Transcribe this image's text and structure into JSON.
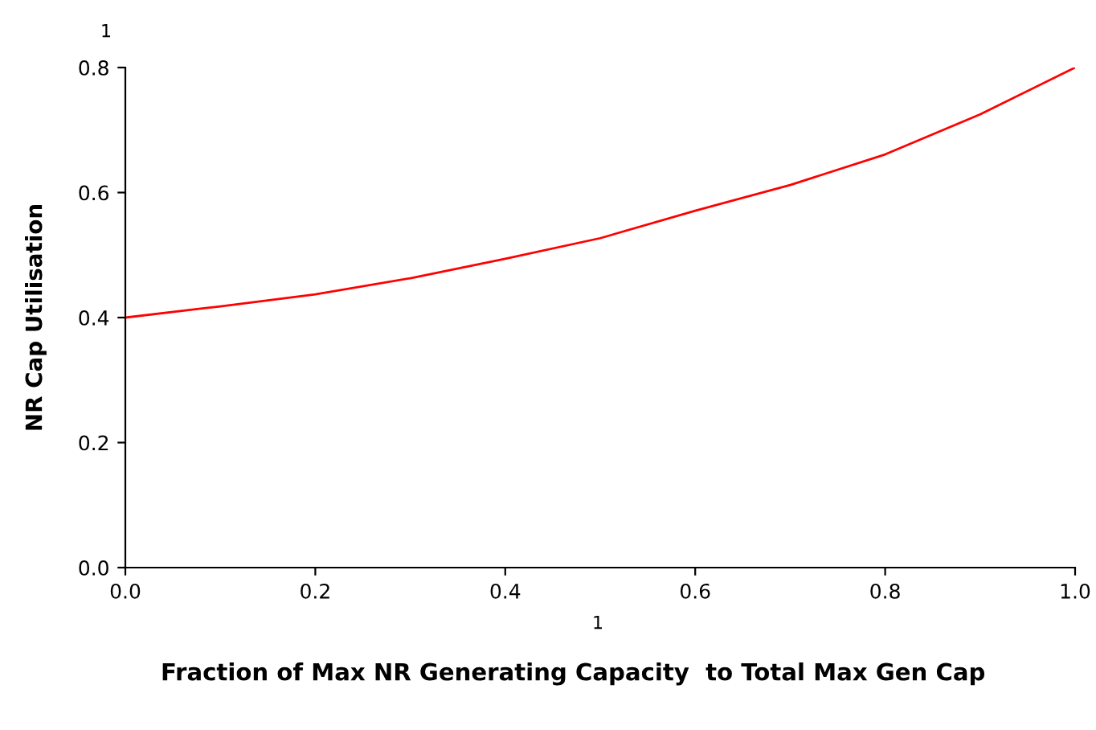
{
  "chart_data": {
    "type": "line",
    "xlabel": "Fraction of Max NR Generating Capacity  to Total Max Gen Cap",
    "ylabel": "NR Cap Utilisation",
    "annotations": [
      "1",
      "1"
    ],
    "x": [
      0.0,
      0.1,
      0.2,
      0.3,
      0.4,
      0.5,
      0.6,
      0.7,
      0.8,
      0.9,
      1.0
    ],
    "series": [
      {
        "color": "#ff0000",
        "values": [
          0.4,
          0.418,
          0.437,
          0.463,
          0.494,
          0.527,
          0.571,
          0.612,
          0.661,
          0.725,
          0.8
        ]
      }
    ],
    "xlim": [
      0,
      1
    ],
    "ylim": [
      0,
      0.8
    ],
    "xticks": [
      {
        "value": 0,
        "label": "0.0"
      },
      0.2,
      0.4,
      0.6,
      0.8,
      {
        "value": 1,
        "label": "1.0"
      }
    ],
    "yticks": [
      {
        "value": 0,
        "label": "0.0"
      },
      0.2,
      0.4,
      0.6,
      0.8
    ],
    "grid": false,
    "legend": false,
    "marker": "none",
    "line_style": "solid"
  }
}
